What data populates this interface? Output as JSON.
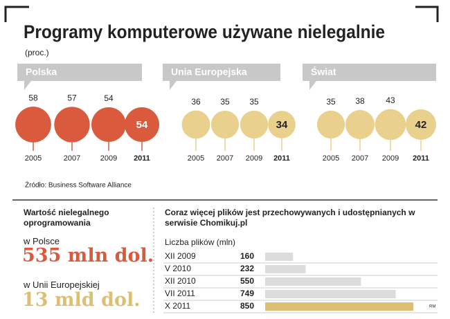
{
  "title": "Programy komputerowe używane nielegalnie",
  "unit": "(proc.)",
  "chart_data": [
    {
      "type": "bubble",
      "title": "Polska",
      "categories": [
        "2005",
        "2007",
        "2009",
        "2011"
      ],
      "values": [
        58,
        57,
        54,
        54
      ],
      "color": "#d95a3c"
    },
    {
      "type": "bubble",
      "title": "Unia Europejska",
      "categories": [
        "2005",
        "2007",
        "2009",
        "2011"
      ],
      "values": [
        36,
        35,
        35,
        34
      ],
      "color": "#e9d08c"
    },
    {
      "type": "bubble",
      "title": "Świat",
      "categories": [
        "2005",
        "2007",
        "2009",
        "2011"
      ],
      "values": [
        35,
        38,
        43,
        42
      ],
      "color": "#e9d08c"
    },
    {
      "type": "bar",
      "orientation": "horizontal",
      "title": "Coraz więcej plików jest przechowywanych i udostępnianych w serwisie Chomikuj.pl",
      "subtitle": "Liczba plików (mln)",
      "categories": [
        "XII 2009",
        "V 2010",
        "XII 2010",
        "VII 2011",
        "X 2011"
      ],
      "values": [
        160,
        232,
        550,
        749,
        850
      ],
      "colors": [
        "#dcdcdc",
        "#dcdcdc",
        "#dcdcdc",
        "#dcdcdc",
        "#dcbf72"
      ]
    }
  ],
  "source": "Źródło: Business Software Alliance",
  "stats": {
    "title": "Wartość nielegalnego oprogramowania",
    "items": [
      {
        "label": "w Polsce",
        "value": "535 mln dol."
      },
      {
        "label": "w Unii Europejskiej",
        "value": "13 mld dol."
      }
    ]
  },
  "credit": "RM"
}
